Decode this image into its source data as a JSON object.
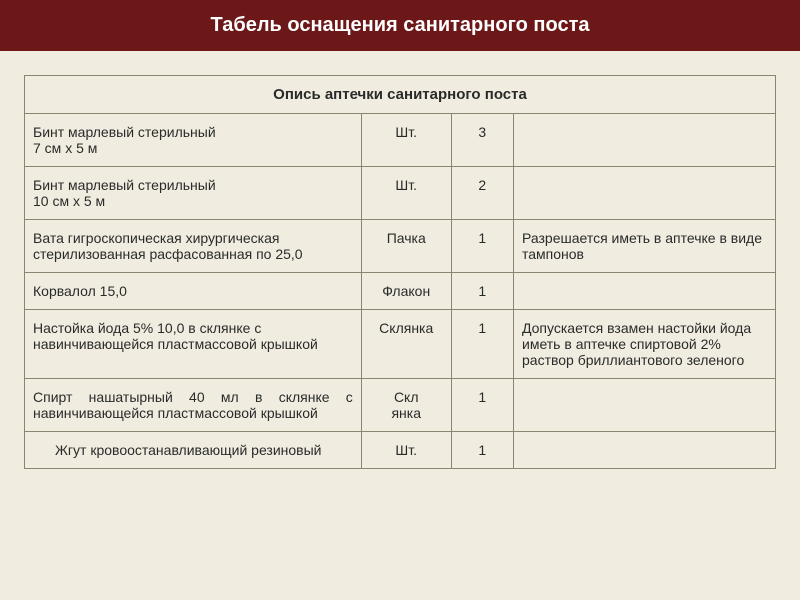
{
  "title": "Табель оснащения санитарного поста",
  "table": {
    "header": "Опись аптечки санитарного поста",
    "columns": {
      "name_width": 270,
      "unit_width": 72,
      "qty_width": 50,
      "note_width": 210
    },
    "rows": [
      {
        "name": "Бинт марлевый стерильный\n7 см х 5 м",
        "unit": "Шт.",
        "qty": "3",
        "note": ""
      },
      {
        "name": "Бинт марлевый стерильный\n10 см х 5 м",
        "unit": "Шт.",
        "qty": "2",
        "note": ""
      },
      {
        "name": "Вата гигроскопическая хирургическая стерилизованная расфасованная по 25,0",
        "unit": "Пачка",
        "qty": "1",
        "note": "Разрешается иметь в аптечке в виде тампонов"
      },
      {
        "name": "Корвалол 15,0",
        "unit": "Флакон",
        "qty": "1",
        "note": ""
      },
      {
        "name": "Настойка йода 5% 10,0 в склянке с навинчивающейся пластмассовой крышкой",
        "unit": "Склянка",
        "qty": "1",
        "note": "Допускается взамен настойки йода иметь в аптечке спиртовой 2% раствор бриллиантового зеленого"
      },
      {
        "name": "Спирт нашатырный 40 мл в склянке с навинчивающейся пластмассовой крышкой",
        "unit": "Скл\nянка",
        "qty": "1",
        "note": "",
        "justify": true
      },
      {
        "name": "Жгут кровоостанавливающий резиновый",
        "unit": "Шт.",
        "qty": "1",
        "note": "",
        "indent": true
      }
    ]
  },
  "style": {
    "header_bg": "#6d1818",
    "header_fg": "#ffffff",
    "page_bg": "#f0ede0",
    "border_color": "#8a8470",
    "text_color": "#2a2a2a",
    "title_fontsize": 20,
    "body_fontsize": 14
  }
}
